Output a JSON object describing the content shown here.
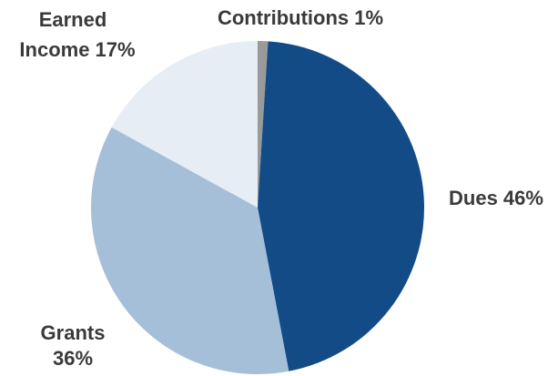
{
  "chart_data": {
    "type": "pie",
    "title": "",
    "slices": [
      {
        "label": "Contributions",
        "percent_text": "1%",
        "value": 1,
        "color": "#9a9a9a",
        "label_lines": [
          "Contributions 1%"
        ]
      },
      {
        "label": "Dues",
        "percent_text": "46%",
        "value": 46,
        "color": "#134b87",
        "label_lines": [
          "Dues 46%"
        ]
      },
      {
        "label": "Grants",
        "percent_text": "36%",
        "value": 36,
        "color": "#a6bfd9",
        "label_lines": [
          "Grants",
          "36%"
        ]
      },
      {
        "label": "Earned Income",
        "percent_text": "17%",
        "value": 17,
        "color": "#e6edf4",
        "label_lines": [
          "Earned",
          "Income 17%"
        ]
      }
    ],
    "start": "12 o'clock",
    "direction": "clockwise",
    "legend": "none (slice labels placed around the pie)"
  }
}
